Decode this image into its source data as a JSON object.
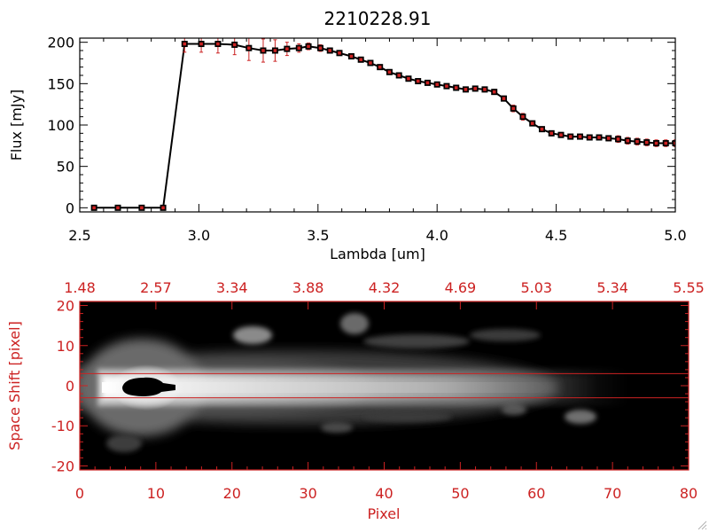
{
  "colors": {
    "accent": "#cc2222",
    "line": "#000000",
    "background": "#ffffff"
  },
  "chart_data": [
    {
      "type": "line",
      "title": "2210228.91",
      "xlabel": "Lambda [um]",
      "ylabel": "Flux [mJy]",
      "xlim": [
        2.5,
        5.0
      ],
      "ylim": [
        -5,
        205
      ],
      "xticks": [
        "2.5",
        "3.0",
        "3.5",
        "4.0",
        "4.5",
        "5.0"
      ],
      "yticks": [
        "0",
        "50",
        "100",
        "150",
        "200"
      ],
      "grid": false,
      "series": [
        {
          "x": [
            2.56,
            2.66,
            2.76,
            2.85,
            2.94,
            3.01,
            3.08,
            3.15,
            3.21,
            3.27,
            3.32,
            3.37,
            3.42,
            3.46,
            3.51,
            3.55,
            3.59,
            3.64,
            3.68,
            3.72,
            3.76,
            3.8,
            3.84,
            3.88,
            3.92,
            3.96,
            4.0,
            4.04,
            4.08,
            4.12,
            4.16,
            4.2,
            4.24,
            4.28,
            4.32,
            4.36,
            4.4,
            4.44,
            4.48,
            4.52,
            4.56,
            4.6,
            4.64,
            4.68,
            4.72,
            4.76,
            4.8,
            4.84,
            4.88,
            4.92,
            4.96,
            5.0
          ],
          "y": [
            0,
            0,
            0,
            0,
            198,
            198,
            198,
            197,
            193,
            190,
            190,
            192,
            193,
            195,
            193,
            190,
            187,
            183,
            179,
            175,
            170,
            164,
            160,
            156,
            153,
            151,
            149,
            147,
            145,
            143,
            144,
            143,
            140,
            132,
            120,
            110,
            102,
            95,
            90,
            88,
            86,
            86,
            85,
            85,
            84,
            83,
            81,
            80,
            79,
            78,
            78,
            78
          ],
          "yerr": [
            0,
            0,
            0,
            0,
            10,
            10,
            11,
            12,
            15,
            14,
            13,
            8,
            5,
            4,
            4,
            3,
            3,
            3,
            3,
            3,
            3,
            3,
            2,
            2,
            2,
            2,
            2,
            2,
            2,
            2,
            2,
            3,
            3,
            3,
            4,
            4,
            3,
            3,
            3,
            3,
            3,
            3,
            3,
            3,
            3,
            4,
            4,
            4,
            4,
            4,
            4,
            4
          ]
        }
      ]
    },
    {
      "type": "heatmap",
      "xlabel": "Pixel",
      "ylabel": "Space Shift [pixel]",
      "xlim": [
        0,
        80
      ],
      "ylim": [
        -21,
        21
      ],
      "xticks": [
        "0",
        "10",
        "20",
        "30",
        "40",
        "50",
        "60",
        "70",
        "80"
      ],
      "yticks": [
        "-20",
        "-10",
        "0",
        "10",
        "20"
      ],
      "top_ticks": [
        "1.48",
        "2.57",
        "3.34",
        "3.88",
        "4.32",
        "4.69",
        "5.03",
        "5.34",
        "5.55"
      ],
      "hlines": [
        3,
        -3
      ],
      "grid": false
    }
  ]
}
